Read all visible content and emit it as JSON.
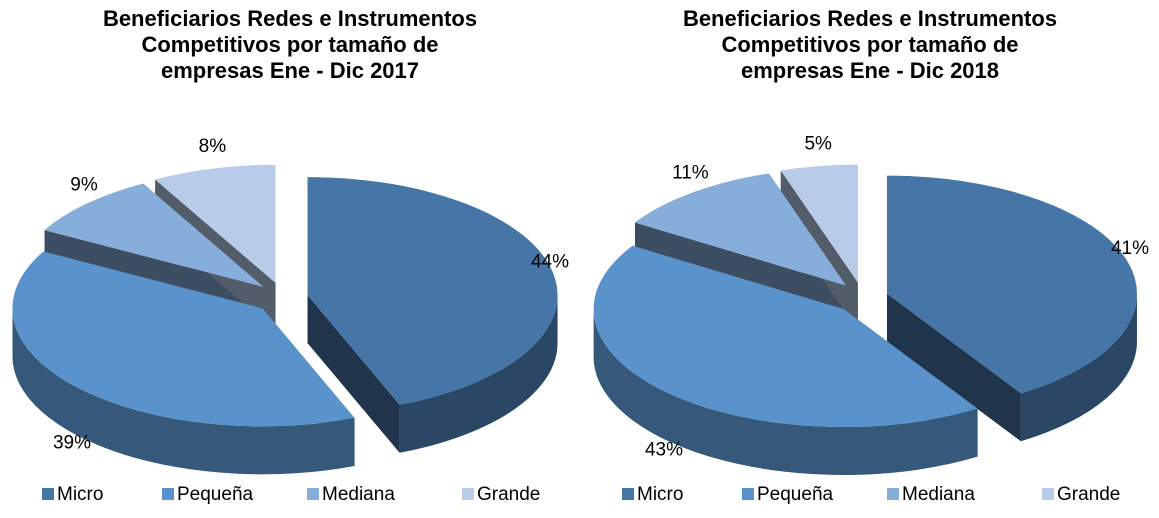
{
  "chart_data": [
    {
      "type": "pie",
      "title": "Beneficiarios Redes e Instrumentos Competitivos por tamaño de empresas Ene - Dic 2017",
      "categories": [
        "Micro",
        "Pequeña",
        "Mediana",
        "Grande"
      ],
      "values": [
        44,
        39,
        9,
        8
      ],
      "value_labels": [
        "44%",
        "39%",
        "9%",
        "8%"
      ],
      "colors": [
        "#4676a8",
        "#5a93cc",
        "#87aedb",
        "#b8cce9"
      ],
      "legend": "bottom"
    },
    {
      "type": "pie",
      "title": "Beneficiarios Redes e Instrumentos Competitivos por tamaño de empresas Ene - Dic 2018",
      "categories": [
        "Micro",
        "Pequeña",
        "Mediana",
        "Grande"
      ],
      "values": [
        41,
        43,
        11,
        5
      ],
      "value_labels": [
        "41%",
        "43%",
        "11%",
        "5%"
      ],
      "colors": [
        "#4676a8",
        "#5a93cc",
        "#87aedb",
        "#b8cce9"
      ],
      "legend": "bottom"
    }
  ]
}
